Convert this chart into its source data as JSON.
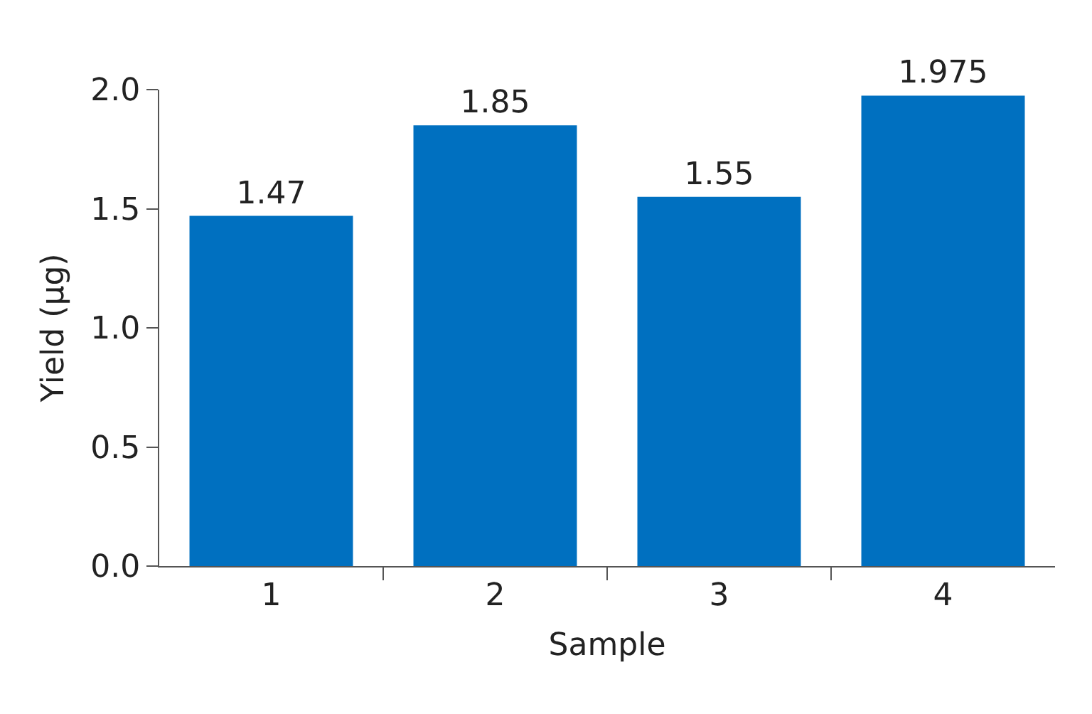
{
  "chart_data": {
    "type": "bar",
    "xlabel": "Sample",
    "ylabel": "Yield (µg)",
    "categories": [
      "1",
      "2",
      "3",
      "4"
    ],
    "values": [
      1.47,
      1.85,
      1.55,
      1.975
    ],
    "color": "#0070c0",
    "ylim": [
      0,
      2.0
    ],
    "yticks": [
      {
        "value": 0,
        "label": "0.0"
      },
      {
        "value": 0.5,
        "label": "0.5"
      },
      {
        "value": 1,
        "label": "1.0"
      },
      {
        "value": 1.5,
        "label": "1.5"
      },
      {
        "value": 2,
        "label": "2.0"
      }
    ],
    "grid": false,
    "legend": false,
    "data_labels": true
  }
}
